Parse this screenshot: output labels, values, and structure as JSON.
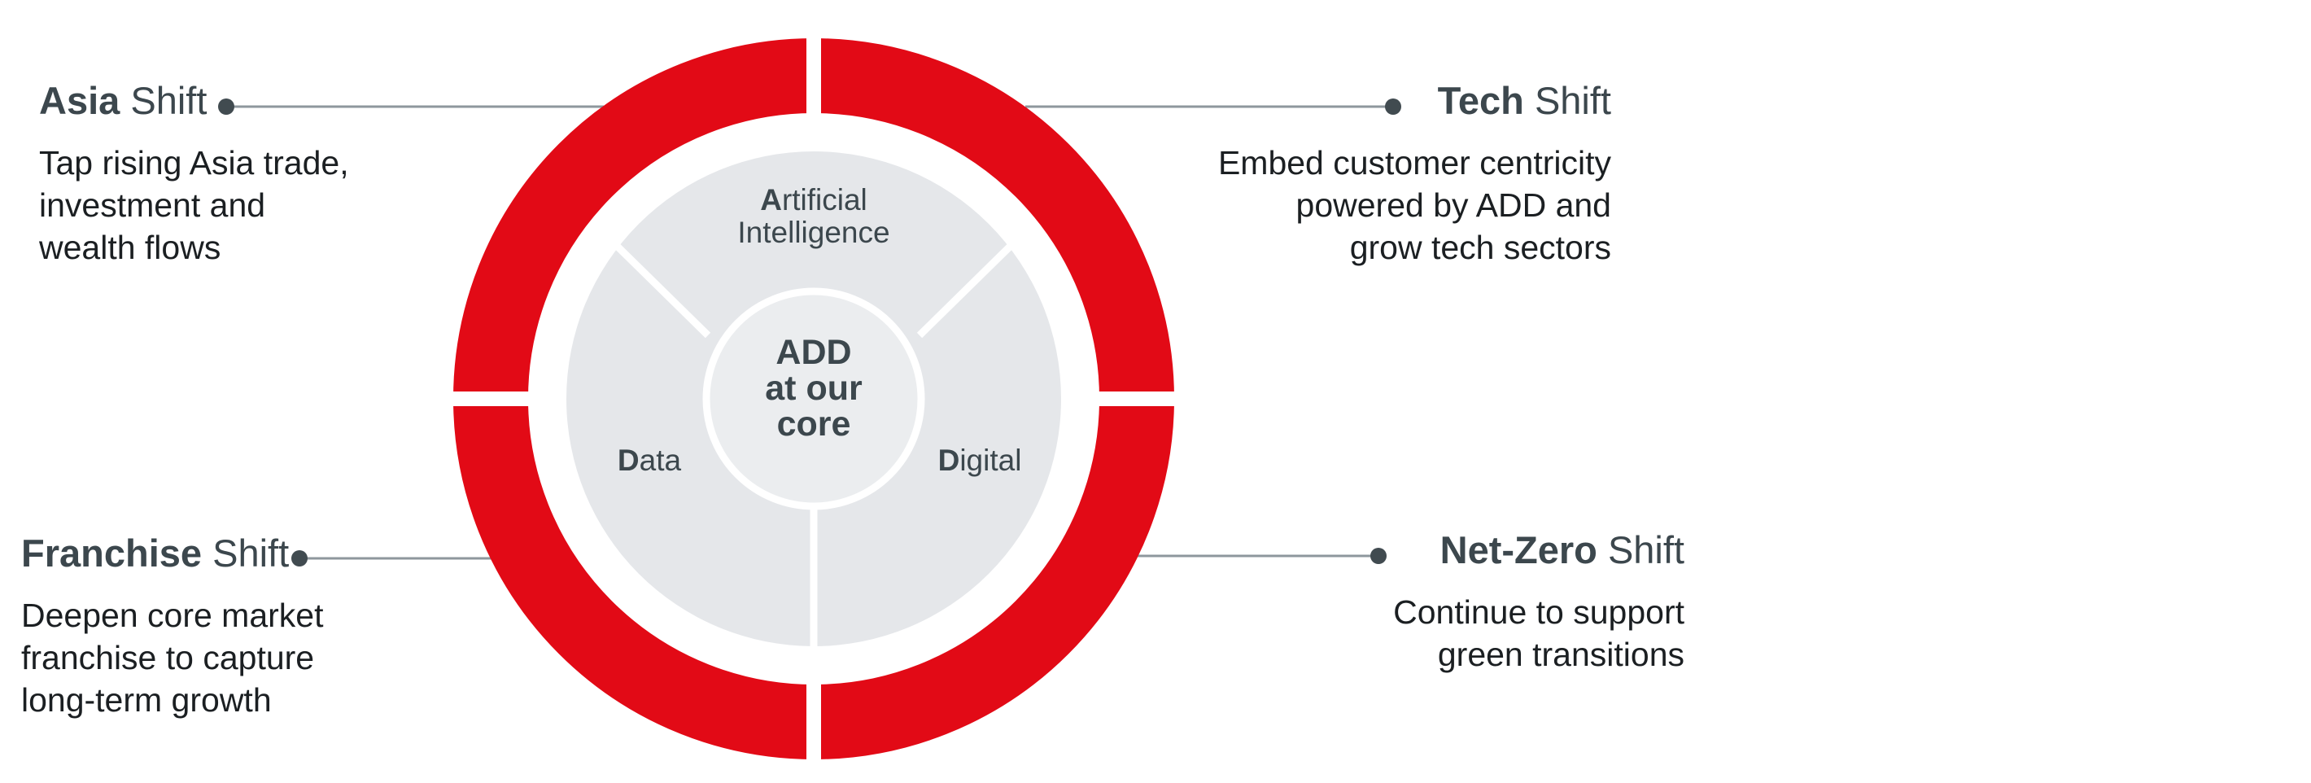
{
  "colors": {
    "ring": "#e20a16",
    "inner_fill": "#e5e7ea",
    "core_fill": "#ebedef",
    "connector": "#8e979d",
    "dot": "#414b50",
    "text_dark": "#3c474d"
  },
  "core": {
    "lines": [
      "ADD",
      "at our",
      "core"
    ]
  },
  "segments": {
    "ai": {
      "initial": "A",
      "rest_line1": "rtificial",
      "line2": "Intelligence"
    },
    "data": {
      "initial": "D",
      "rest": "ata"
    },
    "digital": {
      "initial": "D",
      "rest": "igital"
    }
  },
  "shifts": {
    "asia": {
      "bold": "Asia",
      "regular": " Shift",
      "desc": [
        "Tap rising Asia trade,",
        "investment and",
        "wealth flows"
      ]
    },
    "tech": {
      "bold": "Tech",
      "regular": " Shift",
      "desc": [
        "Embed customer centricity",
        "powered by ADD and",
        "grow tech sectors"
      ]
    },
    "franchise": {
      "bold": "Franchise",
      "regular": " Shift",
      "desc": [
        "Deepen core market",
        "franchise to capture",
        "long-term growth"
      ]
    },
    "netzero": {
      "bold": "Net-Zero",
      "regular": " Shift",
      "desc": [
        "Continue to support",
        "green transitions"
      ]
    }
  }
}
